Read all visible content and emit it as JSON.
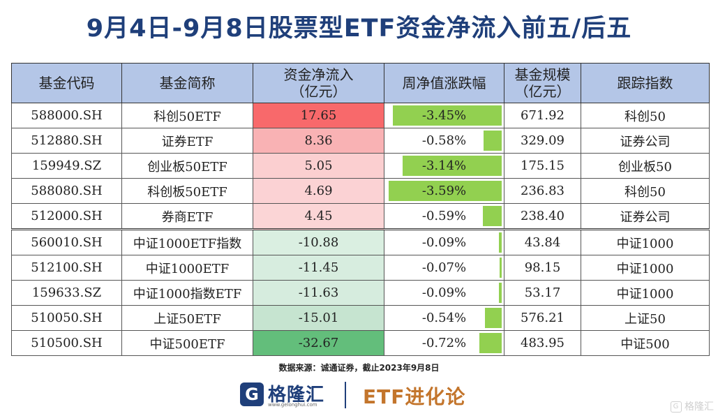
{
  "title": "9月4日-9月8日股票型ETF资金净流入前五/后五",
  "headers": [
    "基金代码",
    "基金简称",
    "资金净流入\n（亿元）",
    "周净值涨跌幅",
    "基金规模\n（亿元）",
    "跟踪指数"
  ],
  "rows": [
    {
      "code": "588000.SH",
      "name": "科创50ETF",
      "flow": "17.65",
      "change": "-3.45%",
      "change_value": -3.45,
      "scale": "671.92",
      "index": "科创50",
      "flow_color": "#f8696b"
    },
    {
      "code": "512880.SH",
      "name": "证券ETF",
      "flow": "8.36",
      "change": "-0.58%",
      "change_value": -0.58,
      "scale": "329.09",
      "index": "证券公司",
      "flow_color": "#f9b2b4"
    },
    {
      "code": "159949.SZ",
      "name": "创业板50ETF",
      "flow": "5.05",
      "change": "-3.14%",
      "change_value": -3.14,
      "scale": "175.15",
      "index": "创业板50",
      "flow_color": "#fbcfd0"
    },
    {
      "code": "588080.SH",
      "name": "科创板50ETF",
      "flow": "4.69",
      "change": "-3.59%",
      "change_value": -3.59,
      "scale": "236.83",
      "index": "科创50",
      "flow_color": "#fbd2d4"
    },
    {
      "code": "512000.SH",
      "name": "券商ETF",
      "flow": "4.45",
      "change": "-0.59%",
      "change_value": -0.59,
      "scale": "238.40",
      "index": "证券公司",
      "flow_color": "#fbd5d6"
    },
    {
      "code": "560010.SH",
      "name": "中证1000ETF指数",
      "flow": "-10.88",
      "change": "-0.09%",
      "change_value": -0.09,
      "scale": "43.84",
      "index": "中证1000",
      "flow_color": "#daefe1"
    },
    {
      "code": "512100.SH",
      "name": "中证1000ETF",
      "flow": "-11.45",
      "change": "-0.07%",
      "change_value": -0.07,
      "scale": "98.15",
      "index": "中证1000",
      "flow_color": "#d7eddf"
    },
    {
      "code": "159633.SZ",
      "name": "中证1000指数ETF",
      "flow": "-11.63",
      "change": "-0.09%",
      "change_value": -0.09,
      "scale": "53.17",
      "index": "中证1000",
      "flow_color": "#d6ecde"
    },
    {
      "code": "510050.SH",
      "name": "上证50ETF",
      "flow": "-15.01",
      "change": "-0.54%",
      "change_value": -0.54,
      "scale": "576.21",
      "index": "上证50",
      "flow_color": "#c6e4d0"
    },
    {
      "code": "510500.SH",
      "name": "中证500ETF",
      "flow": "-32.67",
      "change": "-0.72%",
      "change_value": -0.72,
      "scale": "483.95",
      "index": "中证500",
      "flow_color": "#63be7b"
    }
  ],
  "bar_max": 3.59,
  "bar_color": "#92d050",
  "source": "数据来源：诚通证券，截止2023年9月8日",
  "logo_mark": "G",
  "logo_name": "格隆汇",
  "logo_sub": "www.gelonghui.com",
  "brand2": "ETF进化论",
  "watermark": "格隆汇",
  "watermark_icon": "G"
}
